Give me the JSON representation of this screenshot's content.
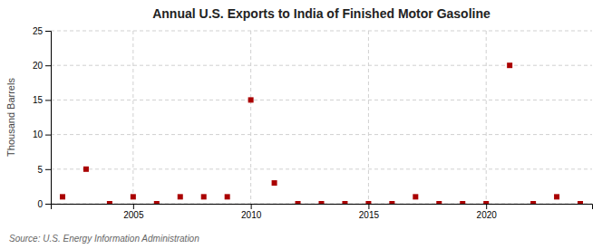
{
  "chart_data": {
    "type": "scatter",
    "title": "Annual U.S. Exports to India of Finished Motor Gasoline",
    "y_label": "Thousand Barrels",
    "source": "Source: U.S. Energy Information Administration",
    "x": [
      2002,
      2003,
      2004,
      2005,
      2006,
      2007,
      2008,
      2009,
      2010,
      2011,
      2012,
      2013,
      2014,
      2015,
      2016,
      2017,
      2018,
      2019,
      2020,
      2021,
      2022,
      2023,
      2024
    ],
    "values": [
      1,
      5,
      0,
      1,
      0,
      1,
      1,
      1,
      15,
      3,
      0,
      0,
      0,
      0,
      0,
      1,
      0,
      0,
      0,
      20,
      0,
      1,
      0
    ],
    "color": "#aa0000",
    "marker": "square",
    "xlim": [
      2001.5,
      2024.5
    ],
    "ylim": [
      0,
      25
    ],
    "xticks": [
      2005,
      2010,
      2015,
      2020
    ],
    "yticks": [
      0,
      5,
      10,
      15,
      20,
      25
    ],
    "grid": true
  }
}
